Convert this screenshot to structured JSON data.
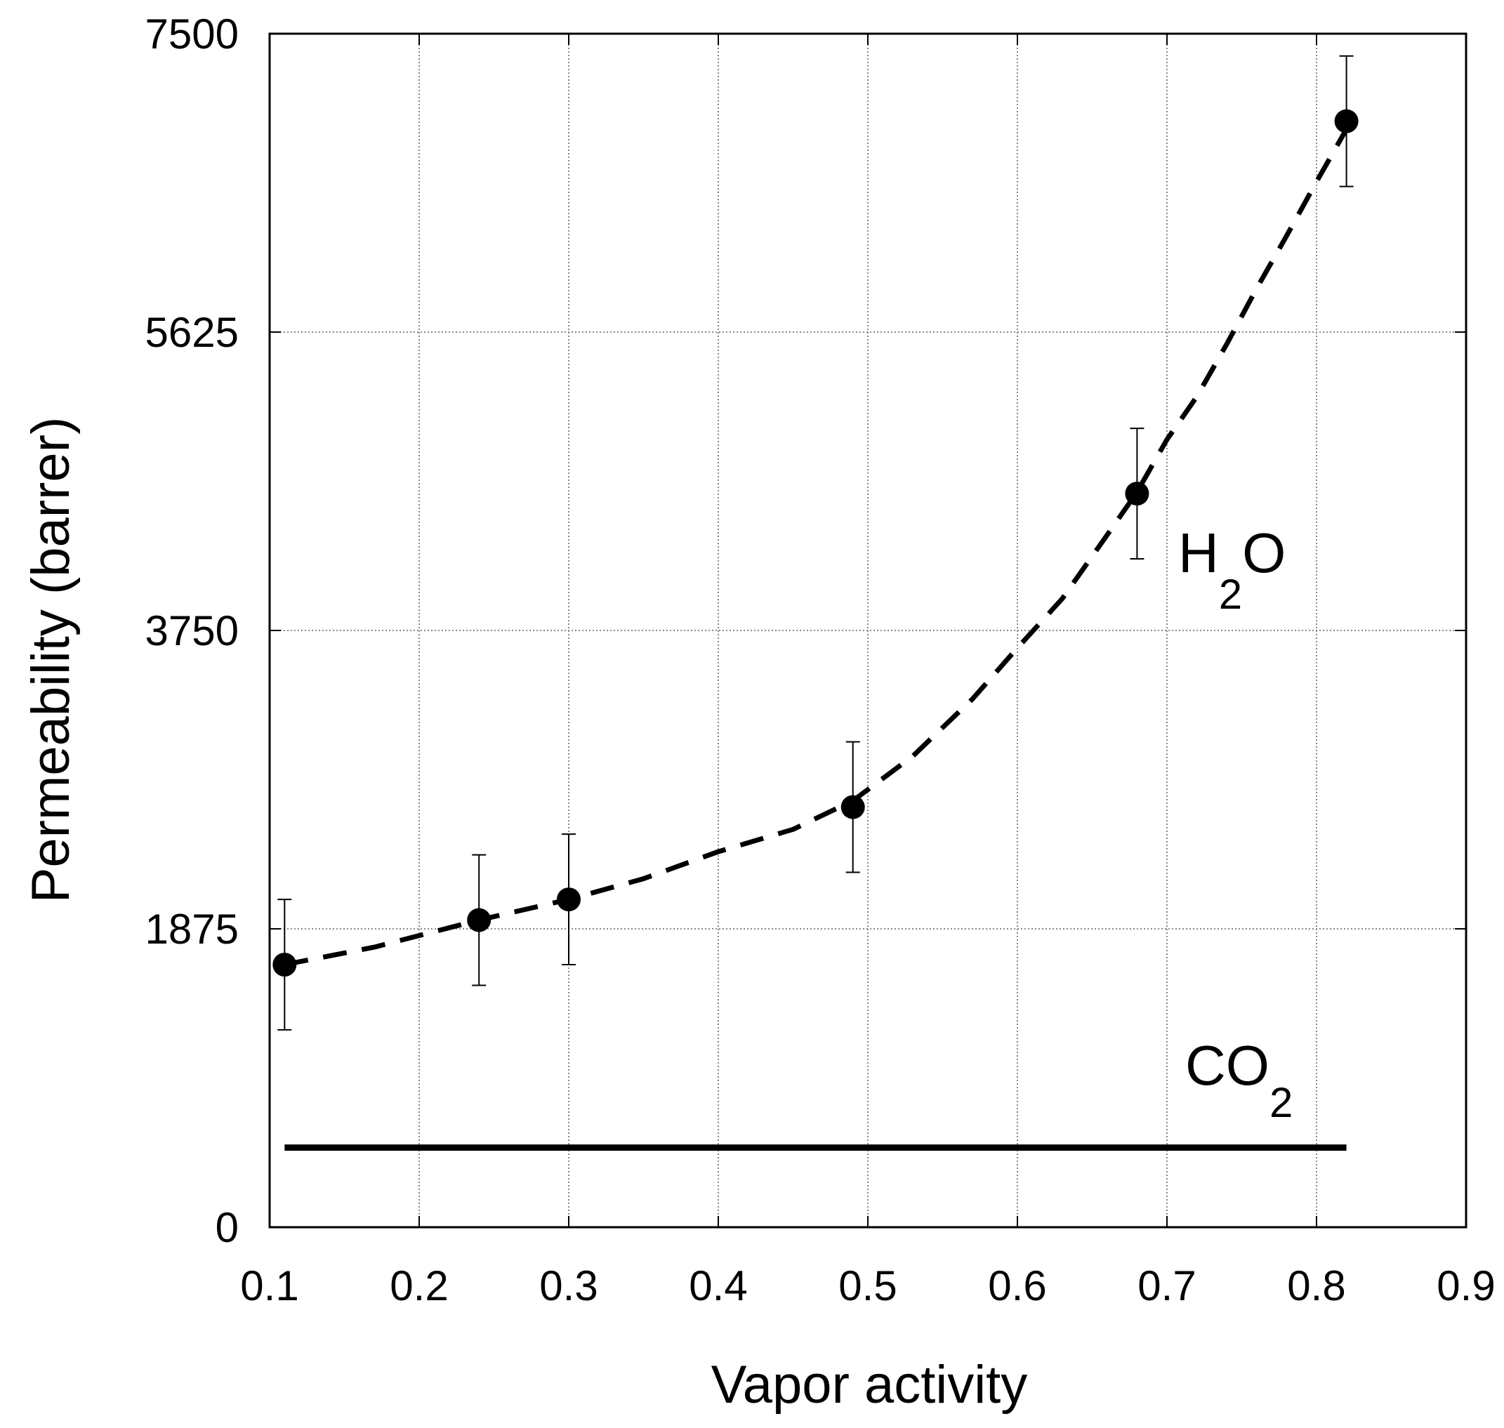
{
  "chart_data": {
    "type": "scatter",
    "title": "",
    "xlabel": "Vapor activity",
    "ylabel": "Permeability (barrer)",
    "xlim": [
      0.1,
      0.9
    ],
    "ylim": [
      0,
      7500
    ],
    "x_ticks": [
      "0.1",
      "0.2",
      "0.3",
      "0.4",
      "0.5",
      "0.6",
      "0.7",
      "0.8",
      "0.9"
    ],
    "y_ticks": [
      "0",
      "1875",
      "3750",
      "5625",
      "7500"
    ],
    "grid": true,
    "series": [
      {
        "name": "H2O",
        "label_main": "H",
        "label_sub": "2",
        "label_tail": "O",
        "marker": "filled-circle",
        "x": [
          0.11,
          0.24,
          0.3,
          0.49,
          0.68,
          0.82
        ],
        "y": [
          1650,
          1930,
          2060,
          2640,
          4610,
          6950
        ],
        "error": [
          410,
          410,
          410,
          410,
          410,
          410
        ]
      },
      {
        "name": "H2O fit",
        "style": "dashed",
        "x": [
          0.11,
          0.17,
          0.24,
          0.3,
          0.35,
          0.4,
          0.45,
          0.49,
          0.53,
          0.57,
          0.6,
          0.63,
          0.66,
          0.68,
          0.7,
          0.72,
          0.74,
          0.76,
          0.78,
          0.8,
          0.82
        ],
        "y": [
          1650,
          1760,
          1930,
          2060,
          2190,
          2360,
          2500,
          2680,
          2960,
          3320,
          3640,
          3950,
          4350,
          4620,
          4950,
          5220,
          5550,
          5900,
          6230,
          6570,
          6900
        ]
      },
      {
        "name": "CO2",
        "label_main": "CO",
        "label_sub": "2",
        "style": "solid",
        "x": [
          0.11,
          0.82
        ],
        "y": [
          500,
          500
        ]
      }
    ]
  }
}
